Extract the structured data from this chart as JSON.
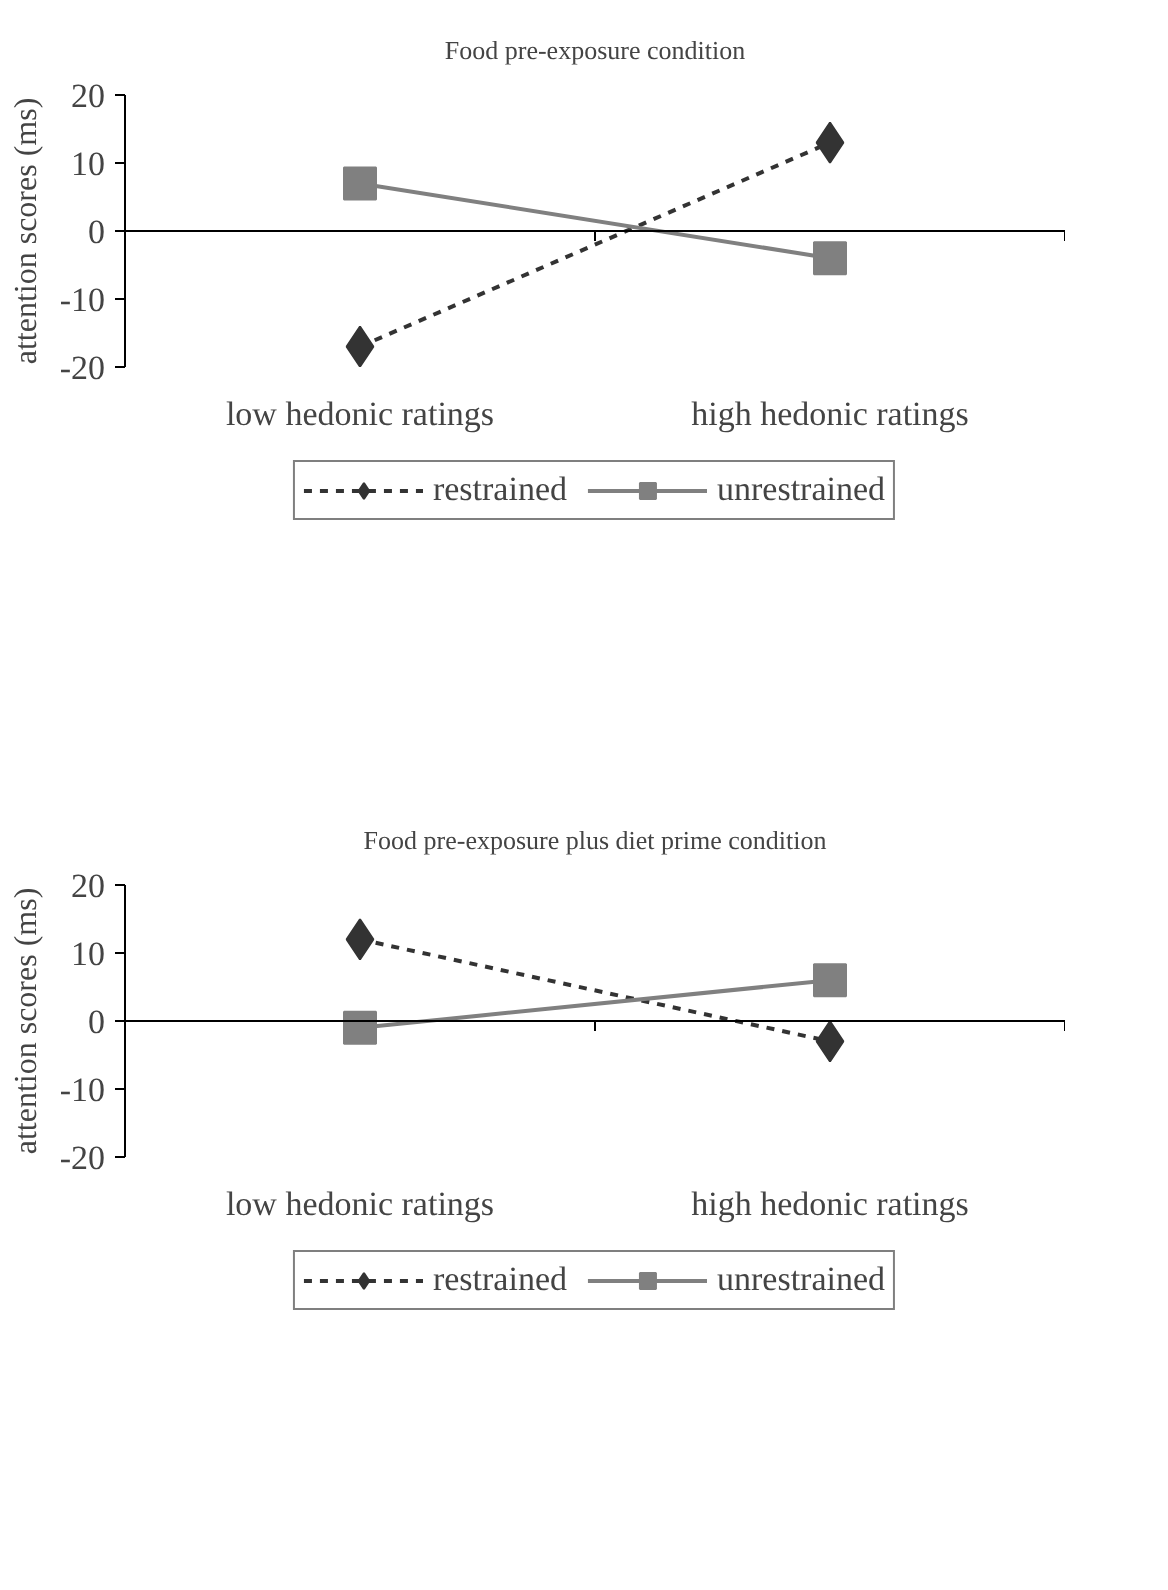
{
  "chart_data": [
    {
      "type": "line",
      "title": "Food pre-exposure condition",
      "ylabel": "attention scores (ms)",
      "categories": [
        "low hedonic ratings",
        "high hedonic ratings"
      ],
      "ylim": [
        -20,
        20
      ],
      "yticks": [
        -20,
        -10,
        0,
        10,
        20
      ],
      "legend": "bottom",
      "series": [
        {
          "name": "restrained",
          "color": "#333333",
          "values": [
            -17,
            13
          ],
          "marker": "diamond",
          "line_style": "dashed"
        },
        {
          "name": "unrestrained",
          "color": "#808080",
          "values": [
            7,
            -4
          ],
          "marker": "square",
          "line_style": "solid"
        }
      ]
    },
    {
      "type": "line",
      "title": "Food pre-exposure plus diet prime condition",
      "ylabel": "attention scores (ms)",
      "categories": [
        "low hedonic ratings",
        "high hedonic ratings"
      ],
      "ylim": [
        -20,
        20
      ],
      "yticks": [
        -20,
        -10,
        0,
        10,
        20
      ],
      "legend": "bottom",
      "series": [
        {
          "name": "restrained",
          "color": "#333333",
          "values": [
            12,
            -3
          ],
          "marker": "diamond",
          "line_style": "dashed"
        },
        {
          "name": "unrestrained",
          "color": "#808080",
          "values": [
            -1,
            6
          ],
          "marker": "square",
          "line_style": "solid"
        }
      ]
    }
  ]
}
